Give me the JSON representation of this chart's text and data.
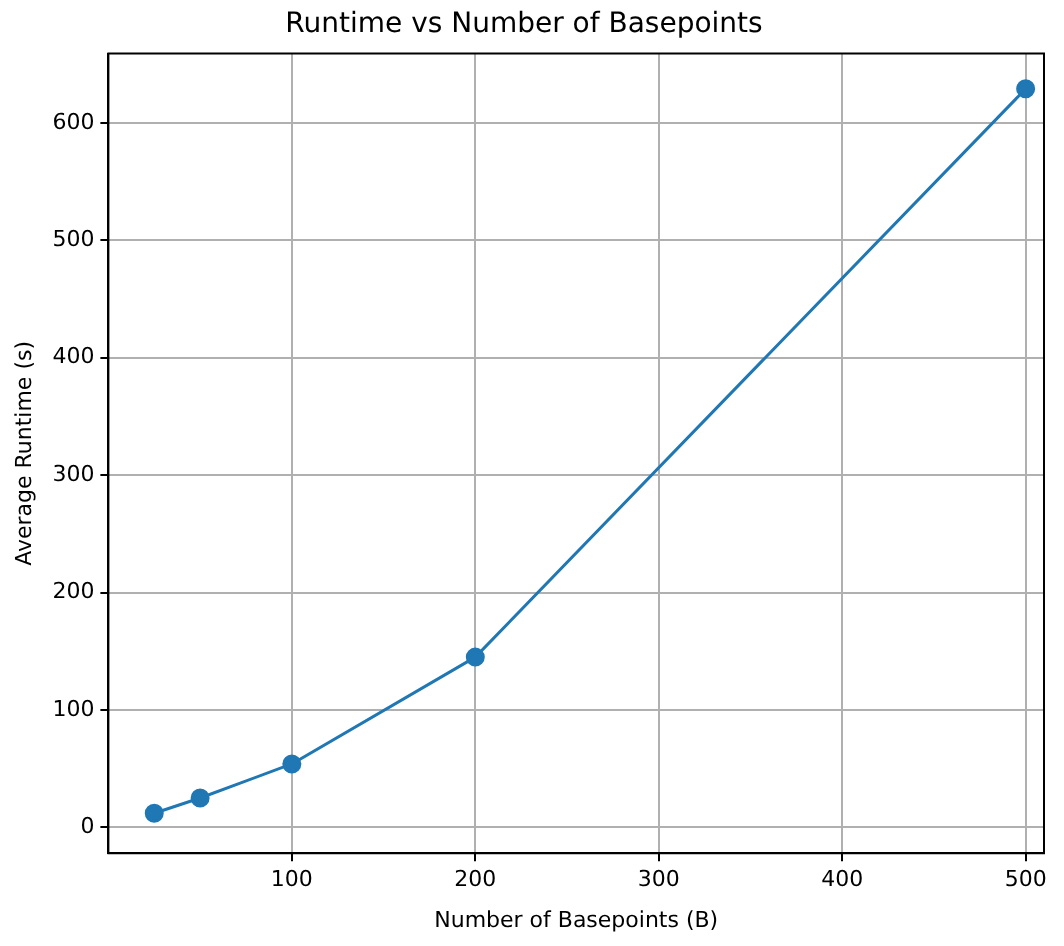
{
  "chart_data": {
    "type": "line",
    "title": "Runtime vs Number of Basepoints",
    "xlabel": "Number of Basepoints (B)",
    "ylabel": "Average Runtime (s)",
    "x": [
      25,
      50,
      100,
      200,
      500
    ],
    "series": [
      {
        "color": "#1f77b4",
        "values": [
          12,
          25,
          54,
          145,
          629
        ]
      }
    ],
    "xlim": [
      0,
      510
    ],
    "xticks": [
      100,
      200,
      300,
      400,
      500
    ],
    "ylim": [
      -22,
      659
    ],
    "yticks": [
      0,
      100,
      200,
      300,
      400,
      500,
      600
    ],
    "grid": true,
    "legend": false,
    "marker": "circle",
    "line_style": "solid"
  }
}
